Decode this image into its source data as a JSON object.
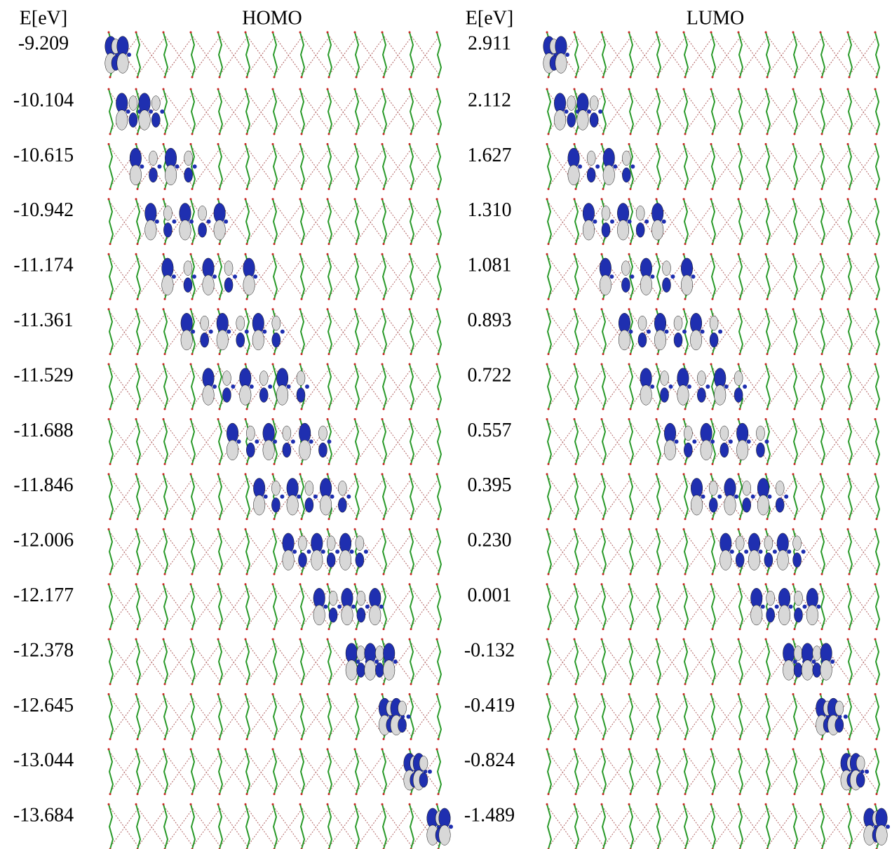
{
  "header": {
    "left_energy": "E[eV]",
    "homo": "HOMO",
    "right_energy": "E[eV]",
    "lumo": "LUMO"
  },
  "rows": [
    {
      "homo_energy": "-9.209",
      "lumo_energy": "2.911"
    },
    {
      "homo_energy": "-10.104",
      "lumo_energy": "2.112"
    },
    {
      "homo_energy": "-10.615",
      "lumo_energy": "1.627"
    },
    {
      "homo_energy": "-10.942",
      "lumo_energy": "1.310"
    },
    {
      "homo_energy": "-11.174",
      "lumo_energy": "1.081"
    },
    {
      "homo_energy": "-11.361",
      "lumo_energy": "0.893"
    },
    {
      "homo_energy": "-11.529",
      "lumo_energy": "0.722"
    },
    {
      "homo_energy": "-11.688",
      "lumo_energy": "0.557"
    },
    {
      "homo_energy": "-11.846",
      "lumo_energy": "0.395"
    },
    {
      "homo_energy": "-12.006",
      "lumo_energy": "0.230"
    },
    {
      "homo_energy": "-12.177",
      "lumo_energy": "0.001"
    },
    {
      "homo_energy": "-12.378",
      "lumo_energy": "-0.132"
    },
    {
      "homo_energy": "-12.645",
      "lumo_energy": "-0.419"
    },
    {
      "homo_energy": "-13.044",
      "lumo_energy": "-0.824"
    },
    {
      "homo_energy": "-13.684",
      "lumo_energy": "-1.489"
    }
  ]
}
